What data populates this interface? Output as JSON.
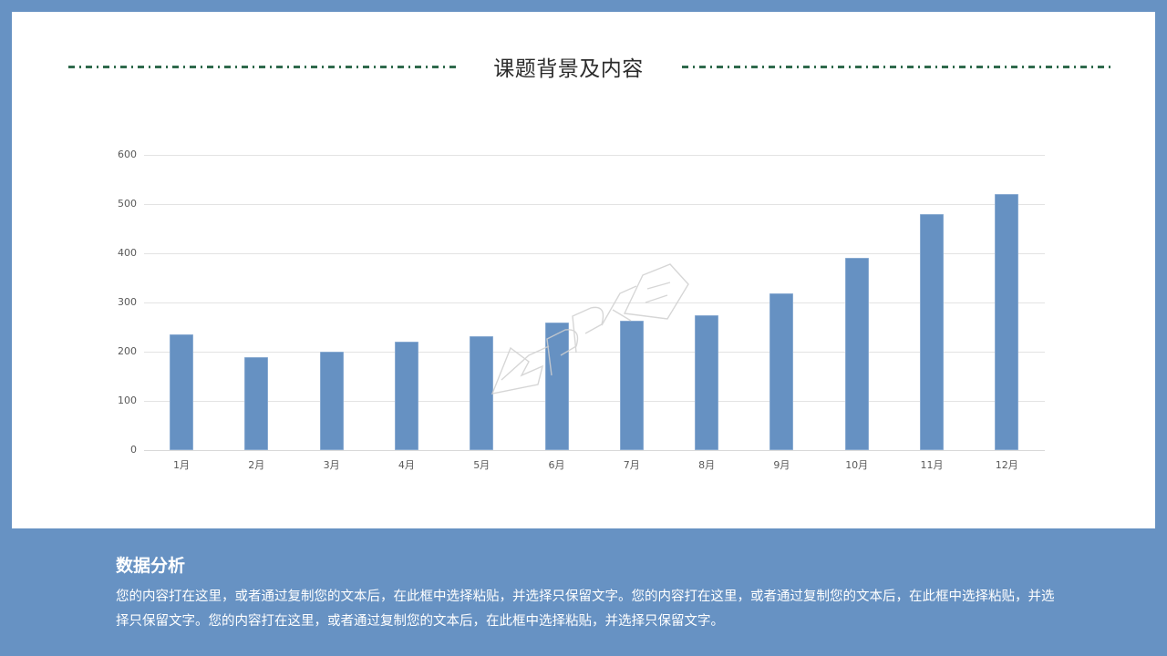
{
  "header": {
    "title": "课题背景及内容"
  },
  "colors": {
    "background": "#6792c3",
    "panel": "#ffffff",
    "bar": "#6691c2",
    "divider": "#2f6a4c",
    "gridline": "#e3e3e3",
    "tick_text": "#595959"
  },
  "watermark": {
    "text": "PPT家园"
  },
  "chart_data": {
    "type": "bar",
    "title": "",
    "xlabel": "",
    "ylabel": "",
    "categories": [
      "1月",
      "2月",
      "3月",
      "4月",
      "5月",
      "6月",
      "7月",
      "8月",
      "9月",
      "10月",
      "11月",
      "12月"
    ],
    "values": [
      236,
      189,
      200,
      221,
      231,
      259,
      263,
      275,
      319,
      390,
      479,
      520
    ],
    "ylim": [
      0,
      600
    ],
    "yticks": [
      "0",
      "100",
      "200",
      "300",
      "400",
      "500",
      "600"
    ],
    "grid": true,
    "legend": "none"
  },
  "analysis": {
    "title": "数据分析",
    "body": "您的内容打在这里，或者通过复制您的文本后，在此框中选择粘贴，并选择只保留文字。您的内容打在这里，或者通过复制您的文本后，在此框中选择粘贴，并选择只保留文字。您的内容打在这里，或者通过复制您的文本后，在此框中选择粘贴，并选择只保留文字。"
  }
}
